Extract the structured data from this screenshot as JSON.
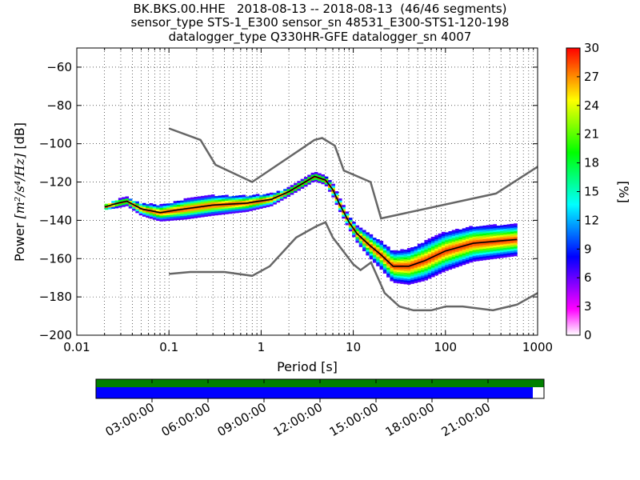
{
  "title_lines": [
    "BK.BKS.00.HHE   2018-08-13 -- 2018-08-13  (46/46 segments)",
    "sensor_type STS-1_E300 sensor_sn 48531_E300-STS1-120-198",
    "datalogger_type Q330HR-GFE datalogger_sn 4007"
  ],
  "chart_data": [
    {
      "type": "heatmap",
      "xlabel": "Period [s]",
      "ylabel": "Power [m²/s⁴/Hz] [dB]",
      "ylabel_parts": {
        "prefix": "Power ",
        "unit": "[m²/s⁴/Hz]",
        "suffix": " [dB]"
      },
      "x_scale": "log",
      "xlim": [
        0.01,
        1000
      ],
      "ylim": [
        -200,
        -50
      ],
      "x_ticks": [
        0.01,
        0.1,
        1,
        10,
        100,
        1000
      ],
      "x_tick_labels": [
        "0.01",
        "0.1",
        "1",
        "10",
        "100",
        "1000"
      ],
      "y_ticks": [
        -200,
        -180,
        -160,
        -140,
        -120,
        -100,
        -80,
        -60
      ],
      "y_tick_labels": [
        "−200",
        "−180",
        "−160",
        "−140",
        "−120",
        "−100",
        "−80",
        "−60"
      ],
      "grid": "dotted",
      "colorbar": {
        "label": "[%]",
        "range": [
          0,
          30
        ],
        "ticks": [
          0,
          3,
          6,
          9,
          12,
          15,
          18,
          21,
          24,
          27,
          30
        ],
        "tick_labels": [
          "0",
          "3",
          "6",
          "9",
          "12",
          "15",
          "18",
          "21",
          "24",
          "27",
          "30"
        ],
        "colormap": [
          "#ffffff",
          "#ff00ff",
          "#8000ff",
          "#0000ff",
          "#0080ff",
          "#00ffff",
          "#00ff80",
          "#00ff00",
          "#80ff00",
          "#ffff00",
          "#ff8000",
          "#ff0000"
        ]
      },
      "series": [
        {
          "role": "noise_model_upper",
          "color": "#666666",
          "points": [
            [
              0.1,
              -92
            ],
            [
              0.22,
              -98
            ],
            [
              0.32,
              -111
            ],
            [
              0.8,
              -120
            ],
            [
              3.8,
              -98
            ],
            [
              4.6,
              -97
            ],
            [
              6.3,
              -101
            ],
            [
              7.9,
              -114
            ],
            [
              15.4,
              -120
            ],
            [
              20,
              -139
            ],
            [
              354,
              -126
            ],
            [
              1000,
              -112
            ]
          ]
        },
        {
          "role": "noise_model_lower",
          "color": "#666666",
          "points": [
            [
              0.1,
              -168
            ],
            [
              0.17,
              -167
            ],
            [
              0.4,
              -167
            ],
            [
              0.8,
              -169
            ],
            [
              1.24,
              -164
            ],
            [
              2.4,
              -149
            ],
            [
              4,
              -143
            ],
            [
              5,
              -141
            ],
            [
              6,
              -149
            ],
            [
              10,
              -163
            ],
            [
              12,
              -166
            ],
            [
              15.6,
              -162
            ],
            [
              21.9,
              -178
            ],
            [
              31.6,
              -185
            ],
            [
              45,
              -187
            ],
            [
              70,
              -187
            ],
            [
              101,
              -185
            ],
            [
              154,
              -185
            ],
            [
              328,
              -187
            ],
            [
              600,
              -184
            ],
            [
              1000,
              -178
            ]
          ]
        },
        {
          "role": "median",
          "color": "#000000",
          "points": [
            [
              0.02,
              -133
            ],
            [
              0.028,
              -131
            ],
            [
              0.035,
              -130
            ],
            [
              0.05,
              -134
            ],
            [
              0.08,
              -136
            ],
            [
              0.15,
              -134
            ],
            [
              0.3,
              -132
            ],
            [
              0.7,
              -131
            ],
            [
              1.3,
              -129
            ],
            [
              2,
              -125
            ],
            [
              3,
              -120
            ],
            [
              3.8,
              -117
            ],
            [
              5,
              -119
            ],
            [
              6,
              -124
            ],
            [
              7,
              -131
            ],
            [
              9,
              -141
            ],
            [
              11,
              -147
            ],
            [
              15,
              -153
            ],
            [
              20,
              -158
            ],
            [
              27,
              -164
            ],
            [
              40,
              -164
            ],
            [
              60,
              -161
            ],
            [
              100,
              -156
            ],
            [
              200,
              -152
            ],
            [
              600,
              -150
            ]
          ]
        }
      ],
      "density_bands": [
        {
          "points": [
            [
              0.02,
              -133
            ],
            [
              0.028,
              -131
            ],
            [
              0.035,
              -130
            ],
            [
              0.05,
              -134
            ],
            [
              0.08,
              -136
            ],
            [
              0.15,
              -134
            ],
            [
              0.3,
              -132
            ],
            [
              0.7,
              -131
            ],
            [
              1.3,
              -129
            ],
            [
              2,
              -125
            ],
            [
              3,
              -120
            ],
            [
              3.8,
              -117
            ],
            [
              5,
              -119
            ],
            [
              6,
              -124
            ],
            [
              7,
              -131
            ],
            [
              9,
              -141
            ],
            [
              11,
              -147
            ],
            [
              15,
              -153
            ],
            [
              20,
              -158
            ],
            [
              27,
              -164
            ],
            [
              40,
              -164
            ],
            [
              60,
              -161
            ],
            [
              100,
              -156
            ],
            [
              200,
              -152
            ],
            [
              600,
              -150
            ]
          ],
          "spread_db": [
            1,
            2,
            2,
            3,
            4,
            5,
            5,
            4,
            3,
            2,
            2,
            2,
            2,
            3,
            3,
            3,
            4,
            6,
            7,
            8,
            9,
            10,
            10,
            9,
            8
          ]
        }
      ]
    },
    {
      "type": "timeline",
      "tick_labels": [
        "03:00:00",
        "06:00:00",
        "09:00:00",
        "12:00:00",
        "15:00:00",
        "18:00:00",
        "21:00:00"
      ],
      "tick_hours": [
        3,
        6,
        9,
        12,
        15,
        18,
        21
      ],
      "hours_range": [
        0,
        24
      ],
      "data_coverage_end_hour": 23.4,
      "colors": {
        "top_bar": "#008000",
        "data_bar": "#0000ff"
      }
    }
  ]
}
